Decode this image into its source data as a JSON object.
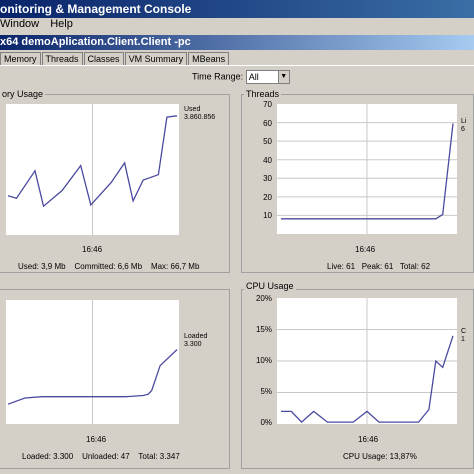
{
  "window": {
    "title": "onitoring & Management Console"
  },
  "menu": {
    "items": [
      "Window",
      "Help"
    ]
  },
  "connection": {
    "title": "x64 demoAplication.Client.Client -pc"
  },
  "tabs": [
    "Memory",
    "Threads",
    "Classes",
    "VM Summary",
    "MBeans"
  ],
  "time_range": {
    "label": "Time Range:",
    "value": "All"
  },
  "panels": {
    "memory": {
      "title": "ory Usage",
      "legend_name": "Used",
      "legend_value": "3.860.856",
      "xtick": "16:46",
      "stats": {
        "used": "Used: 3,9 Mb",
        "committed": "Committed: 6,6 Mb",
        "max": "Max: 66,7 Mb"
      }
    },
    "threads": {
      "title": "Threads",
      "legend_name": "Li",
      "legend_value": "6",
      "y_ticks": [
        "70",
        "60",
        "50",
        "40",
        "30",
        "20",
        "10"
      ],
      "xtick": "16:46",
      "stats": {
        "live": "Live: 61",
        "peak": "Peak: 61",
        "total": "Total: 62"
      }
    },
    "classes": {
      "title": "",
      "legend_name": "Loaded",
      "legend_value": "3.300",
      "xtick": "16:46",
      "stats": {
        "loaded": "Loaded: 3.300",
        "unloaded": "Unloaded: 47",
        "total": "Total: 3.347"
      }
    },
    "cpu": {
      "title": "CPU Usage",
      "legend_name": "C",
      "legend_value": "1",
      "y_ticks": [
        "20%",
        "15%",
        "10%",
        "5%",
        "0%"
      ],
      "xtick": "16:46",
      "stats": {
        "usage": "CPU Usage: 13,87%"
      }
    }
  },
  "chart_data": [
    {
      "type": "line",
      "name": "memory",
      "series": [
        {
          "name": "Used",
          "values": [
            0.3,
            0.28,
            0.49,
            0.22,
            0.34,
            0.53,
            0.23,
            0.4,
            0.55,
            0.26,
            0.42,
            0.46,
            0.9,
            0.91
          ]
        }
      ]
    },
    {
      "type": "line",
      "name": "threads",
      "ylim": [
        10,
        70
      ],
      "series": [
        {
          "name": "Live",
          "values": [
            17,
            17,
            17,
            17,
            17,
            17,
            17,
            17,
            17,
            17,
            17,
            19,
            61
          ]
        }
      ]
    },
    {
      "type": "line",
      "name": "classes",
      "series": [
        {
          "name": "Loaded",
          "values": [
            0.16,
            0.21,
            0.22,
            0.22,
            0.22,
            0.22,
            0.22,
            0.22,
            0.23,
            0.24,
            0.27,
            0.47,
            0.6
          ]
        }
      ]
    },
    {
      "type": "line",
      "name": "cpu",
      "ylim": [
        0,
        20
      ],
      "y_ticks": [
        "0%",
        "5%",
        "10%",
        "15%",
        "20%"
      ],
      "series": [
        {
          "name": "CPU",
          "values": [
            2,
            2,
            0.3,
            2,
            0.3,
            0.3,
            0.3,
            2,
            0.3,
            0.3,
            0.3,
            2.3,
            10,
            9,
            14
          ]
        }
      ]
    }
  ],
  "colors": {
    "line": "#4a4aa0",
    "titlebar": "#0a246a",
    "window_bg": "#d4d0c8"
  }
}
